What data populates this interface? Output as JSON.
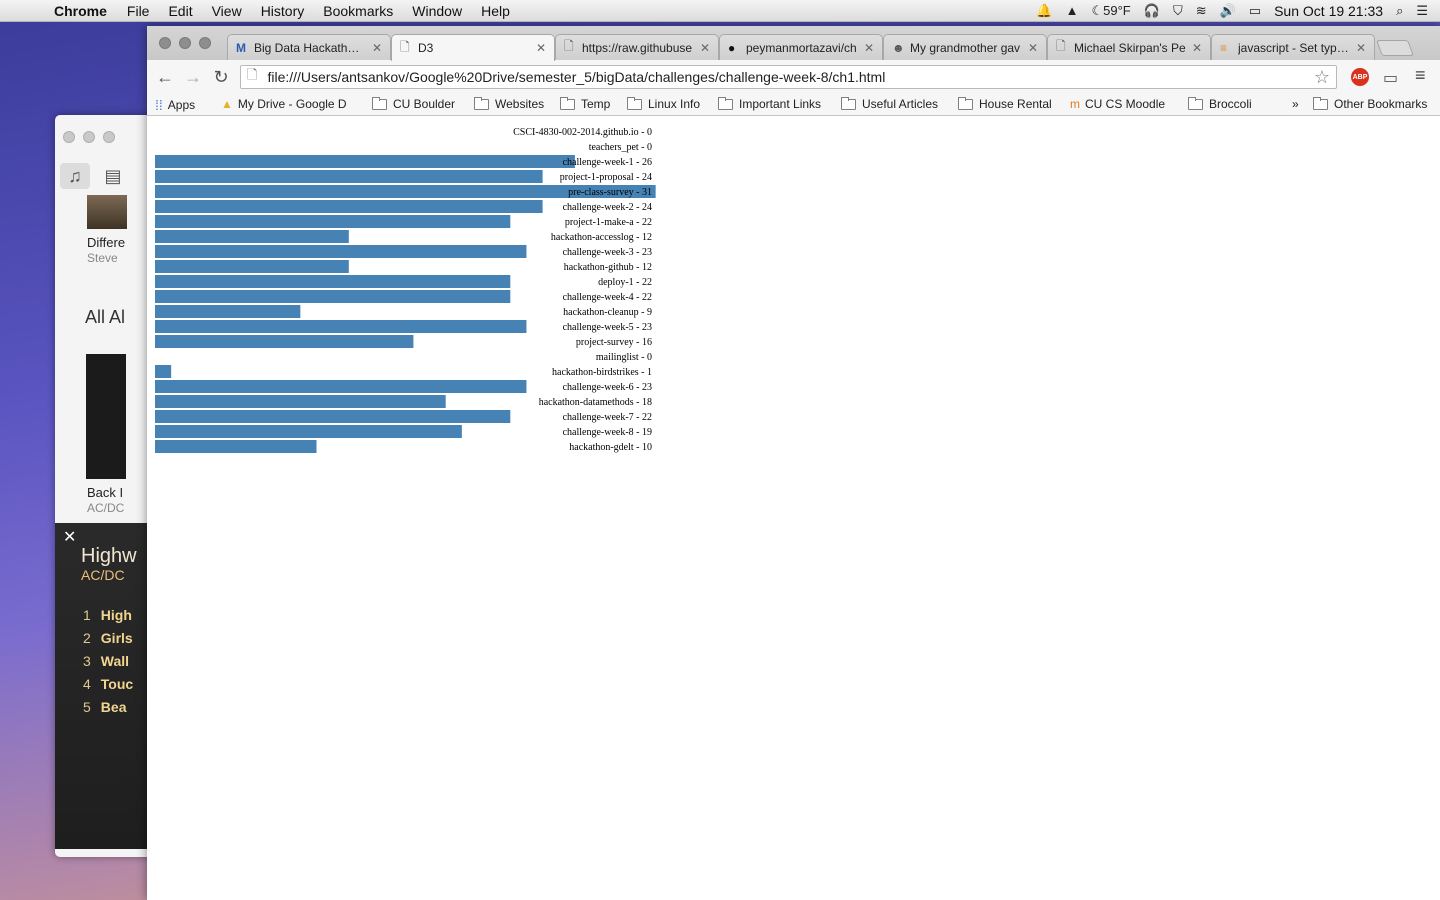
{
  "menubar": {
    "app": "Chrome",
    "items": [
      "File",
      "Edit",
      "View",
      "History",
      "Bookmarks",
      "Window",
      "Help"
    ],
    "temperature": "59°F",
    "datetime": "Sun Oct 19  21:33"
  },
  "itunes": {
    "album1_title": "Differe",
    "album1_artist": "Steve",
    "section": "All Al",
    "album2_title": "Back I",
    "album2_artist": "AC/DC",
    "now_playing_song": "Highw",
    "now_playing_artist": "AC/DC",
    "tracks": [
      {
        "n": "1",
        "t": "High"
      },
      {
        "n": "2",
        "t": "Girls"
      },
      {
        "n": "3",
        "t": "Wall"
      },
      {
        "n": "4",
        "t": "Touc"
      },
      {
        "n": "5",
        "t": "Bea"
      }
    ]
  },
  "tabs": [
    {
      "label": "Big Data Hackathons",
      "icon": "gmail-icon",
      "fav": "M"
    },
    {
      "label": "D3",
      "icon": "page-icon",
      "fav": "🗋"
    },
    {
      "label": "https://raw.githubuse",
      "icon": "page-icon",
      "fav": "🗋"
    },
    {
      "label": "peymanmortazavi/ch",
      "icon": "github-icon",
      "fav": "●"
    },
    {
      "label": "My grandmother gav",
      "icon": "reddit-icon",
      "fav": "☻"
    },
    {
      "label": "Michael Skirpan's Pe",
      "icon": "page-icon",
      "fav": "🗋"
    },
    {
      "label": "javascript - Set type f",
      "icon": "stackoverflow-icon",
      "fav": "≡"
    }
  ],
  "url": "file:///Users/antsankov/Google%20Drive/semester_5/bigData/challenges/challenge-week-8/ch1.html",
  "bookmarks": [
    {
      "label": "Apps",
      "kind": "apps"
    },
    {
      "label": "My Drive - Google D",
      "kind": "drive"
    },
    {
      "label": "CU Boulder",
      "kind": "folder"
    },
    {
      "label": "Websites",
      "kind": "folder"
    },
    {
      "label": "Temp",
      "kind": "folder"
    },
    {
      "label": "Linux Info",
      "kind": "folder"
    },
    {
      "label": "Important Links",
      "kind": "folder"
    },
    {
      "label": "Useful Articles",
      "kind": "folder"
    },
    {
      "label": "House Rental",
      "kind": "folder"
    },
    {
      "label": "CU CS Moodle",
      "kind": "moodle"
    },
    {
      "label": "Broccoli",
      "kind": "folder"
    }
  ],
  "bookmarks_overflow": "»",
  "other_bookmarks": "Other Bookmarks",
  "chart_data": {
    "type": "bar",
    "orientation": "horizontal",
    "bar_color": "#4682b4",
    "highlight_color": "#4682b4",
    "max_value": 31,
    "categories": [
      "CSCI-4830-002-2014.github.io",
      "teachers_pet",
      "challenge-week-1",
      "project-1-proposal",
      "pre-class-survey",
      "challenge-week-2",
      "project-1-make-a",
      "hackathon-accesslog",
      "challenge-week-3",
      "hackathon-github",
      "deploy-1",
      "challenge-week-4",
      "hackathon-cleanup",
      "challenge-week-5",
      "project-survey",
      "mailinglist",
      "hackathon-birdstrikes",
      "challenge-week-6",
      "hackathon-datamethods",
      "challenge-week-7",
      "challenge-week-8",
      "hackathon-gdelt"
    ],
    "values": [
      0,
      0,
      26,
      24,
      31,
      24,
      22,
      12,
      23,
      12,
      22,
      22,
      9,
      23,
      16,
      0,
      1,
      23,
      18,
      22,
      19,
      10
    ],
    "labels": [
      "CSCI-4830-002-2014.github.io - 0",
      "teachers_pet - 0",
      "challenge-week-1 - 26",
      "project-1-proposal - 24",
      "pre-class-survey - 31",
      "challenge-week-2 - 24",
      "project-1-make-a - 22",
      "hackathon-accesslog - 12",
      "challenge-week-3 - 23",
      "hackathon-github - 12",
      "deploy-1 - 22",
      "challenge-week-4 - 22",
      "hackathon-cleanup - 9",
      "challenge-week-5 - 23",
      "project-survey - 16",
      "mailinglist - 0",
      "hackathon-birdstrikes - 1",
      "challenge-week-6 - 23",
      "hackathon-datamethods - 18",
      "challenge-week-7 - 22",
      "challenge-week-8 - 19",
      "hackathon-gdelt - 10"
    ]
  }
}
